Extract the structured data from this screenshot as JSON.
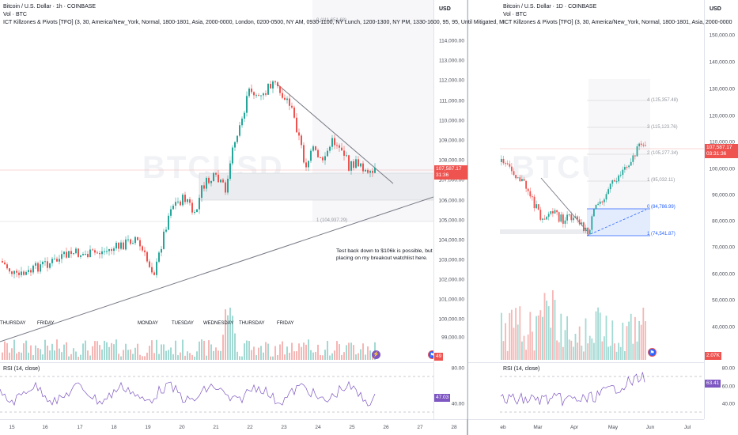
{
  "left_chart": {
    "title": "Bitcoin / U.S. Dollar · 1h · COINBASE",
    "vol_label": "Vol · BTC",
    "indicator": "ICT Killzones & Pivots [TFO] (3, 30, America/New_York, Normal, 1800-1801, Asia, 2000-0000, London, 0200-0500, NY AM, 0930-1100, NY Lunch, 1200-1300, NY PM, 1330-1600, 95, 95, Until Mitigated, M",
    "axis_unit": "USD",
    "price_ticks": [
      "114,000.00",
      "113,000.00",
      "112,000.00",
      "111,000.00",
      "110,000.00",
      "109,000.00",
      "108,000.00",
      "107,000.00",
      "106,000.00",
      "105,000.00",
      "104,000.00",
      "103,000.00",
      "102,000.00",
      "101,000.00",
      "100,000.00",
      "99,000.00"
    ],
    "current_price": "107,587.17",
    "countdown": "31:36",
    "volume_tag": "49",
    "rsi_label": "RSI (14, close)",
    "rsi_ticks": [
      "80.00",
      "40.00"
    ],
    "rsi_value": "47.03",
    "time_ticks": [
      "15",
      "16",
      "17",
      "18",
      "19",
      "20",
      "21",
      "22",
      "23",
      "24",
      "25",
      "26",
      "27",
      "28"
    ],
    "day_labels": [
      "THURSDAY",
      "FRIDAY",
      "MONDAY",
      "TUESDAY",
      "WEDNESDAY",
      "THURSDAY",
      "FRIDAY"
    ],
    "fib_labels": [
      "0 (111,651.68)",
      "1 (104,937.29)"
    ],
    "annotation": "Test back down to $106k is possible, but placing on my breakout watchlist here.",
    "watermark": "BTCUSD"
  },
  "right_chart": {
    "title": "Bitcoin / U.S. Dollar · 1D · COINBASE",
    "vol_label": "Vol · BTC",
    "indicator": "ICT Killzones & Pivots [TFO] (3, 30, America/New_York, Normal, 1800-1801, Asia, 2000-0000",
    "axis_unit": "USD",
    "price_ticks": [
      "150,000.00",
      "140,000.00",
      "130,000.00",
      "120,000.00",
      "110,000.00",
      "100,000.00",
      "90,000.00",
      "80,000.00",
      "70,000.00",
      "60,000.00",
      "50,000.00",
      "40,000.00"
    ],
    "current_price": "107,587.17",
    "countdown": "03:31:36",
    "volume_tag": "2.07K",
    "rsi_label": "RSI (14, close)",
    "rsi_ticks": [
      "80.00",
      "60.00",
      "40.00"
    ],
    "rsi_value": "63.41",
    "time_ticks": [
      "eb",
      "Mar",
      "Apr",
      "May",
      "Jun",
      "Jul"
    ],
    "fib_labels": [
      "4 (125,357.48)",
      "3 (115,123.76)",
      "2 (105,277.34)",
      "1 (95,032.11)",
      "0 (84,786.99)",
      "1 (74,541.87)"
    ],
    "watermark": "BTCUSD"
  },
  "colors": {
    "up": "#26a69a",
    "down": "#ef5350",
    "rsi": "#7e57c2",
    "fib_blue": "#2962ff",
    "price_tag": "#ef5350"
  }
}
